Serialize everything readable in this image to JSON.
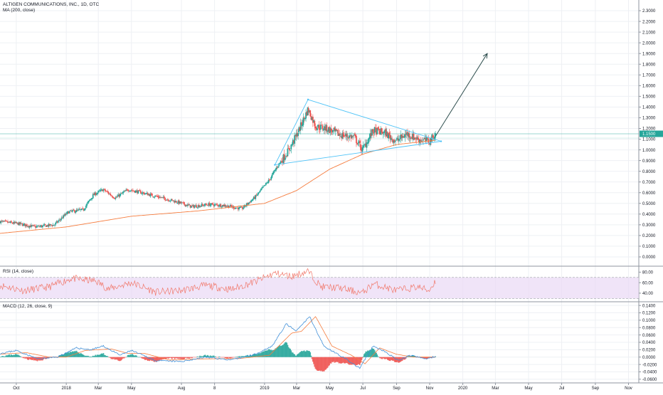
{
  "header": {
    "symbol_line": "ALTIGEN COMMUNICATIONS, INC., 1D, OTC",
    "ma_label": "MA (200, close)"
  },
  "panes": {
    "rsi_label": "RSI (14, close)",
    "macd_label": "MACD (12, 26, close, 9)"
  },
  "colors": {
    "up": "#26a69a",
    "down": "#ef5350",
    "ma": "#f57c3e",
    "drawing": "#4fc3f7",
    "arrow": "#2f4f4f",
    "rsi_line": "#f1786b",
    "rsi_band": "#e9d8f5",
    "macd_line": "#3f8fd8",
    "signal_line": "#f57c3e",
    "price_line": "#26a69a",
    "grid": "#eef0f4"
  },
  "chart_data": [
    {
      "type": "candlestick",
      "title": "ALTIGEN COMMUNICATIONS, INC., 1D, OTC",
      "x_range": [
        "2017-09-01",
        "2020-11-20"
      ],
      "x_ticks": [
        {
          "date": "2017-10-01",
          "label": "Oct"
        },
        {
          "date": "2018-01-01",
          "label": "2018"
        },
        {
          "date": "2018-03-01",
          "label": "Mar"
        },
        {
          "date": "2018-05-01",
          "label": "May"
        },
        {
          "date": "2018-08-01",
          "label": "Aug"
        },
        {
          "date": "2018-10-01",
          "label": "8"
        },
        {
          "date": "2019-01-01",
          "label": "2019"
        },
        {
          "date": "2019-03-01",
          "label": "Mar"
        },
        {
          "date": "2019-05-01",
          "label": "May"
        },
        {
          "date": "2019-07-01",
          "label": "Jul"
        },
        {
          "date": "2019-09-01",
          "label": "Sep"
        },
        {
          "date": "2019-11-01",
          "label": "Nov"
        },
        {
          "date": "2020-01-01",
          "label": "2020"
        },
        {
          "date": "2020-03-01",
          "label": "Mar"
        },
        {
          "date": "2020-05-01",
          "label": "May"
        },
        {
          "date": "2020-07-01",
          "label": "Jul"
        },
        {
          "date": "2020-09-01",
          "label": "Sep"
        },
        {
          "date": "2020-11-01",
          "label": "Nov"
        }
      ],
      "y_range": [
        -0.08,
        2.4
      ],
      "y_ticks": [
        "2.3000",
        "2.2000",
        "2.1000",
        "2.0000",
        "1.9000",
        "1.8000",
        "1.7000",
        "1.6000",
        "1.5000",
        "1.4000",
        "1.3000",
        "1.2000",
        "1.1000",
        "1.0000",
        "0.9000",
        "0.8000",
        "0.7000",
        "0.6000",
        "0.5000",
        "0.4000",
        "0.3000",
        "0.2000",
        "0.1000",
        "0.0000"
      ],
      "last_price": {
        "value": 1.15,
        "label": "1.1500"
      },
      "series_anchors": [
        {
          "date": "2017-09-01",
          "close": 0.33
        },
        {
          "date": "2017-10-05",
          "close": 0.31
        },
        {
          "date": "2017-11-05",
          "close": 0.28
        },
        {
          "date": "2017-12-10",
          "close": 0.3
        },
        {
          "date": "2018-01-05",
          "close": 0.42
        },
        {
          "date": "2018-02-01",
          "close": 0.44
        },
        {
          "date": "2018-02-20",
          "close": 0.58
        },
        {
          "date": "2018-03-10",
          "close": 0.63
        },
        {
          "date": "2018-04-01",
          "close": 0.55
        },
        {
          "date": "2018-04-25",
          "close": 0.63
        },
        {
          "date": "2018-05-20",
          "close": 0.6
        },
        {
          "date": "2018-06-20",
          "close": 0.56
        },
        {
          "date": "2018-07-20",
          "close": 0.52
        },
        {
          "date": "2018-08-20",
          "close": 0.47
        },
        {
          "date": "2018-09-20",
          "close": 0.49
        },
        {
          "date": "2018-10-20",
          "close": 0.48
        },
        {
          "date": "2018-11-20",
          "close": 0.45
        },
        {
          "date": "2018-12-15",
          "close": 0.56
        },
        {
          "date": "2019-01-10",
          "close": 0.72
        },
        {
          "date": "2019-01-25",
          "close": 0.85
        },
        {
          "date": "2019-02-15",
          "close": 1.0
        },
        {
          "date": "2019-03-05",
          "close": 1.18
        },
        {
          "date": "2019-03-22",
          "close": 1.38
        },
        {
          "date": "2019-04-05",
          "close": 1.22
        },
        {
          "date": "2019-04-25",
          "close": 1.2
        },
        {
          "date": "2019-05-20",
          "close": 1.14
        },
        {
          "date": "2019-06-15",
          "close": 1.12
        },
        {
          "date": "2019-06-30",
          "close": 1.0
        },
        {
          "date": "2019-07-20",
          "close": 1.18
        },
        {
          "date": "2019-08-10",
          "close": 1.16
        },
        {
          "date": "2019-08-31",
          "close": 1.08
        },
        {
          "date": "2019-09-20",
          "close": 1.15
        },
        {
          "date": "2019-10-10",
          "close": 1.1
        },
        {
          "date": "2019-10-31",
          "close": 1.08
        },
        {
          "date": "2019-11-12",
          "close": 1.15
        }
      ],
      "ma200_anchors": [
        {
          "date": "2017-09-01",
          "value": 0.22
        },
        {
          "date": "2018-01-01",
          "value": 0.28
        },
        {
          "date": "2018-05-01",
          "value": 0.38
        },
        {
          "date": "2018-09-01",
          "value": 0.43
        },
        {
          "date": "2019-01-01",
          "value": 0.5
        },
        {
          "date": "2019-03-01",
          "value": 0.62
        },
        {
          "date": "2019-05-01",
          "value": 0.82
        },
        {
          "date": "2019-07-01",
          "value": 0.96
        },
        {
          "date": "2019-09-01",
          "value": 1.05
        },
        {
          "date": "2019-11-12",
          "value": 1.09
        }
      ],
      "drawings": {
        "triangle": [
          {
            "date": "2019-01-20",
            "value": 0.86
          },
          {
            "date": "2019-03-22",
            "value": 1.47
          },
          {
            "date": "2019-11-22",
            "value": 1.08
          }
        ],
        "arrow": [
          {
            "date": "2019-11-12",
            "value": 1.13
          },
          {
            "date": "2020-02-15",
            "value": 1.9
          }
        ]
      }
    },
    {
      "type": "line",
      "title": "RSI (14, close)",
      "y_range": [
        25,
        90
      ],
      "y_ticks": [
        "80.00",
        "60.00",
        "40.00"
      ],
      "band": [
        30,
        70
      ],
      "series_anchors": [
        {
          "date": "2017-09-01",
          "value": 55
        },
        {
          "date": "2017-10-15",
          "value": 45
        },
        {
          "date": "2017-12-01",
          "value": 52
        },
        {
          "date": "2018-01-10",
          "value": 68
        },
        {
          "date": "2018-02-25",
          "value": 63
        },
        {
          "date": "2018-03-20",
          "value": 48
        },
        {
          "date": "2018-05-01",
          "value": 60
        },
        {
          "date": "2018-06-15",
          "value": 42
        },
        {
          "date": "2018-08-01",
          "value": 45
        },
        {
          "date": "2018-09-15",
          "value": 55
        },
        {
          "date": "2018-11-01",
          "value": 47
        },
        {
          "date": "2018-12-15",
          "value": 62
        },
        {
          "date": "2019-01-20",
          "value": 78
        },
        {
          "date": "2019-02-20",
          "value": 72
        },
        {
          "date": "2019-03-22",
          "value": 82
        },
        {
          "date": "2019-04-15",
          "value": 52
        },
        {
          "date": "2019-05-20",
          "value": 50
        },
        {
          "date": "2019-06-30",
          "value": 40
        },
        {
          "date": "2019-07-20",
          "value": 58
        },
        {
          "date": "2019-08-31",
          "value": 45
        },
        {
          "date": "2019-10-10",
          "value": 52
        },
        {
          "date": "2019-10-31",
          "value": 45
        },
        {
          "date": "2019-11-12",
          "value": 64
        }
      ]
    },
    {
      "type": "bar+line",
      "title": "MACD (12, 26, close, 9)",
      "y_range": [
        -0.07,
        0.15
      ],
      "y_ticks": [
        "0.1400",
        "0.1200",
        "0.1000",
        "0.0800",
        "0.0600",
        "0.0400",
        "0.0200",
        "0.0000",
        "-0.0200",
        "-0.0400",
        "-0.0600"
      ],
      "macd_anchors": [
        {
          "date": "2017-09-01",
          "value": 0.01
        },
        {
          "date": "2017-10-01",
          "value": 0.018
        },
        {
          "date": "2017-11-10",
          "value": -0.005
        },
        {
          "date": "2017-12-15",
          "value": 0.0
        },
        {
          "date": "2018-01-20",
          "value": 0.025
        },
        {
          "date": "2018-02-15",
          "value": 0.02
        },
        {
          "date": "2018-03-10",
          "value": 0.03
        },
        {
          "date": "2018-04-10",
          "value": 0.005
        },
        {
          "date": "2018-05-01",
          "value": 0.018
        },
        {
          "date": "2018-06-15",
          "value": -0.01
        },
        {
          "date": "2018-08-01",
          "value": -0.012
        },
        {
          "date": "2018-09-15",
          "value": 0.0
        },
        {
          "date": "2018-11-01",
          "value": -0.008
        },
        {
          "date": "2018-12-15",
          "value": 0.008
        },
        {
          "date": "2019-01-15",
          "value": 0.03
        },
        {
          "date": "2019-02-10",
          "value": 0.09
        },
        {
          "date": "2019-02-28",
          "value": 0.07
        },
        {
          "date": "2019-03-25",
          "value": 0.11
        },
        {
          "date": "2019-04-20",
          "value": 0.03
        },
        {
          "date": "2019-05-25",
          "value": 0.0
        },
        {
          "date": "2019-06-25",
          "value": -0.03
        },
        {
          "date": "2019-07-20",
          "value": 0.03
        },
        {
          "date": "2019-08-10",
          "value": 0.015
        },
        {
          "date": "2019-09-05",
          "value": -0.01
        },
        {
          "date": "2019-09-25",
          "value": 0.005
        },
        {
          "date": "2019-10-25",
          "value": -0.005
        },
        {
          "date": "2019-11-12",
          "value": 0.002
        }
      ],
      "signal_anchors": [
        {
          "date": "2017-09-01",
          "value": 0.008
        },
        {
          "date": "2017-10-20",
          "value": 0.012
        },
        {
          "date": "2017-11-30",
          "value": 0.0
        },
        {
          "date": "2018-01-01",
          "value": 0.0
        },
        {
          "date": "2018-02-05",
          "value": 0.018
        },
        {
          "date": "2018-03-25",
          "value": 0.022
        },
        {
          "date": "2018-04-25",
          "value": 0.01
        },
        {
          "date": "2018-05-25",
          "value": 0.01
        },
        {
          "date": "2018-07-10",
          "value": -0.008
        },
        {
          "date": "2018-09-01",
          "value": -0.005
        },
        {
          "date": "2018-11-15",
          "value": -0.004
        },
        {
          "date": "2019-01-10",
          "value": 0.005
        },
        {
          "date": "2019-02-20",
          "value": 0.065
        },
        {
          "date": "2019-03-10",
          "value": 0.07
        },
        {
          "date": "2019-04-05",
          "value": 0.11
        },
        {
          "date": "2019-05-05",
          "value": 0.03
        },
        {
          "date": "2019-06-10",
          "value": 0.005
        },
        {
          "date": "2019-07-05",
          "value": -0.018
        },
        {
          "date": "2019-08-01",
          "value": 0.025
        },
        {
          "date": "2019-08-31",
          "value": 0.008
        },
        {
          "date": "2019-10-01",
          "value": 0.0
        },
        {
          "date": "2019-11-12",
          "value": 0.0
        }
      ]
    }
  ]
}
